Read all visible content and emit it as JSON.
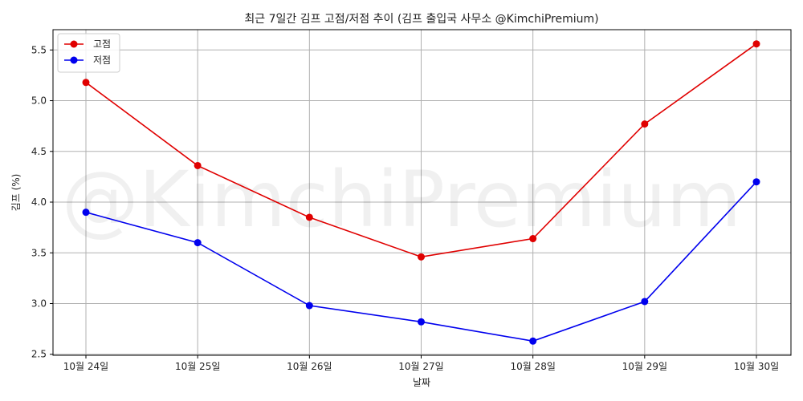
{
  "chart_data": {
    "type": "line",
    "title": "최근 7일간 김프 고점/저점 추이 (김프 출입국 사무소 @KimchiPremium)",
    "xlabel": "날짜",
    "ylabel": "김프 (%)",
    "categories": [
      "10월 24일",
      "10월 25일",
      "10월 26일",
      "10월 27일",
      "10월 28일",
      "10월 29일",
      "10월 30일"
    ],
    "series": [
      {
        "name": "고점",
        "color": "#e00000",
        "values": [
          5.18,
          4.36,
          3.85,
          3.46,
          3.64,
          4.77,
          5.56
        ]
      },
      {
        "name": "저점",
        "color": "#0000ee",
        "values": [
          3.9,
          3.6,
          2.98,
          2.82,
          2.63,
          3.02,
          4.2
        ]
      }
    ],
    "ylim": [
      2.49,
      5.7
    ],
    "yticks": [
      "2.5",
      "3.0",
      "3.5",
      "4.0",
      "4.5",
      "5.0",
      "5.5"
    ],
    "grid": true,
    "legend_position": "top-left",
    "watermark": "@KimchiPremium"
  }
}
